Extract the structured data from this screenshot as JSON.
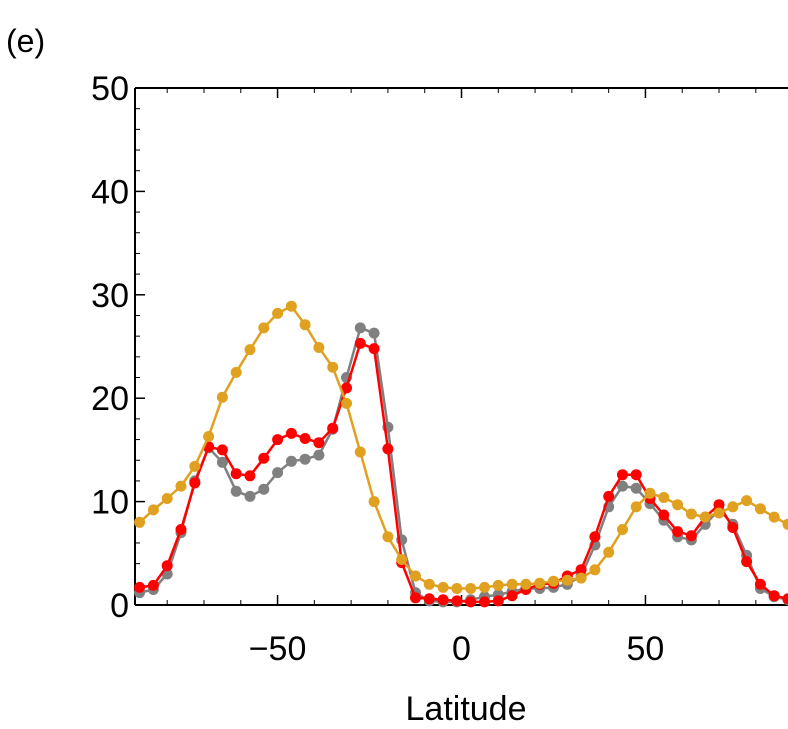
{
  "panel_label": "(e)",
  "chart_data": {
    "type": "line",
    "title": "",
    "xlabel": "Latitude",
    "ylabel": "",
    "xlim": [
      -88.75,
      88.75
    ],
    "ylim": [
      0,
      50
    ],
    "xticks": [
      -50,
      0,
      50
    ],
    "xtick_labels": [
      "−50",
      "0",
      "50"
    ],
    "yticks": [
      0,
      10,
      20,
      30,
      40,
      50
    ],
    "ytick_labels": [
      "0",
      "10",
      "20",
      "30",
      "40",
      "50"
    ],
    "grid": false,
    "legend": "none",
    "x": [
      -88.75,
      -83.75,
      -78.75,
      -73.75,
      -68.75,
      -63.75,
      -58.75,
      -53.75,
      -48.75,
      -43.75,
      -38.75,
      -33.75,
      -28.75,
      -23.75,
      -18.75,
      -13.75,
      -8.75,
      -3.75,
      1.25,
      6.25,
      11.25,
      16.25,
      21.25,
      26.25,
      31.25,
      36.25,
      41.25,
      46.25,
      51.25,
      56.25,
      61.25,
      66.25,
      71.25,
      76.25,
      81.25,
      86.25
    ],
    "series": [
      {
        "color": "#808080",
        "x": [
          -87.5,
          -83.75,
          -80.0,
          -76.25,
          -72.5,
          -68.75,
          -65.0,
          -61.25,
          -57.5,
          -53.75,
          -50.0,
          -46.25,
          -42.5,
          -38.75,
          -35.0,
          -31.25,
          -27.5,
          -23.75,
          -20.0,
          -16.25,
          -12.5,
          -8.75,
          -5.0,
          -1.25,
          2.5,
          6.25,
          10.0,
          13.75,
          17.5,
          21.25,
          25.0,
          28.75,
          32.5,
          36.25,
          40.0,
          43.75,
          47.5,
          51.25,
          55.0,
          58.75,
          62.5,
          66.25,
          70.0,
          73.75,
          77.5,
          81.25,
          85.0,
          88.75
        ],
        "values": [
          1.2,
          1.5,
          3.0,
          7.0,
          12.0,
          15.2,
          13.8,
          11.0,
          10.5,
          11.2,
          12.8,
          13.9,
          14.1,
          14.5,
          17.0,
          22.0,
          26.8,
          26.3,
          17.2,
          6.3,
          1.2,
          0.4,
          0.3,
          0.3,
          0.5,
          0.8,
          1.0,
          1.3,
          1.6,
          1.6,
          1.7,
          2.0,
          2.8,
          5.8,
          9.5,
          11.5,
          11.3,
          9.8,
          8.2,
          6.6,
          6.3,
          7.8,
          9.2,
          7.8,
          4.8,
          1.6,
          0.8,
          0.5
        ]
      },
      {
        "color": "#ff0000",
        "x": [
          -87.5,
          -83.75,
          -80.0,
          -76.25,
          -72.5,
          -68.75,
          -65.0,
          -61.25,
          -57.5,
          -53.75,
          -50.0,
          -46.25,
          -42.5,
          -38.75,
          -35.0,
          -31.25,
          -27.5,
          -23.75,
          -20.0,
          -16.25,
          -12.5,
          -8.75,
          -5.0,
          -1.25,
          2.5,
          6.25,
          10.0,
          13.75,
          17.5,
          21.25,
          25.0,
          28.75,
          32.5,
          36.25,
          40.0,
          43.75,
          47.5,
          51.25,
          55.0,
          58.75,
          62.5,
          66.25,
          70.0,
          73.75,
          77.5,
          81.25,
          85.0,
          88.75
        ],
        "values": [
          1.7,
          1.9,
          3.8,
          7.3,
          11.8,
          15.3,
          15.0,
          12.7,
          12.5,
          14.2,
          16.0,
          16.6,
          16.1,
          15.7,
          17.1,
          21.0,
          25.3,
          24.8,
          15.1,
          4.1,
          0.7,
          0.6,
          0.5,
          0.4,
          0.3,
          0.3,
          0.4,
          0.9,
          1.5,
          2.0,
          2.1,
          2.8,
          3.4,
          6.6,
          10.5,
          12.6,
          12.6,
          10.3,
          8.7,
          7.1,
          6.7,
          8.5,
          9.7,
          7.5,
          4.2,
          2.0,
          0.9,
          0.6
        ]
      },
      {
        "color": "#e0a020",
        "x": [
          -87.5,
          -83.75,
          -80.0,
          -76.25,
          -72.5,
          -68.75,
          -65.0,
          -61.25,
          -57.5,
          -53.75,
          -50.0,
          -46.25,
          -42.5,
          -38.75,
          -35.0,
          -31.25,
          -27.5,
          -23.75,
          -20.0,
          -16.25,
          -12.5,
          -8.75,
          -5.0,
          -1.25,
          2.5,
          6.25,
          10.0,
          13.75,
          17.5,
          21.25,
          25.0,
          28.75,
          32.5,
          36.25,
          40.0,
          43.75,
          47.5,
          51.25,
          55.0,
          58.75,
          62.5,
          66.25,
          70.0,
          73.75,
          77.5,
          81.25,
          85.0,
          88.75
        ],
        "values": [
          8.0,
          9.2,
          10.3,
          11.5,
          13.4,
          16.3,
          20.1,
          22.5,
          24.7,
          26.8,
          28.2,
          28.9,
          27.1,
          24.9,
          23.0,
          19.5,
          14.8,
          10.0,
          6.6,
          4.4,
          2.8,
          2.0,
          1.7,
          1.6,
          1.6,
          1.7,
          1.9,
          2.0,
          2.0,
          2.1,
          2.3,
          2.4,
          2.6,
          3.4,
          5.1,
          7.3,
          9.5,
          10.8,
          10.4,
          9.7,
          8.8,
          8.5,
          8.9,
          9.5,
          10.1,
          9.3,
          8.5,
          7.8
        ]
      }
    ]
  }
}
